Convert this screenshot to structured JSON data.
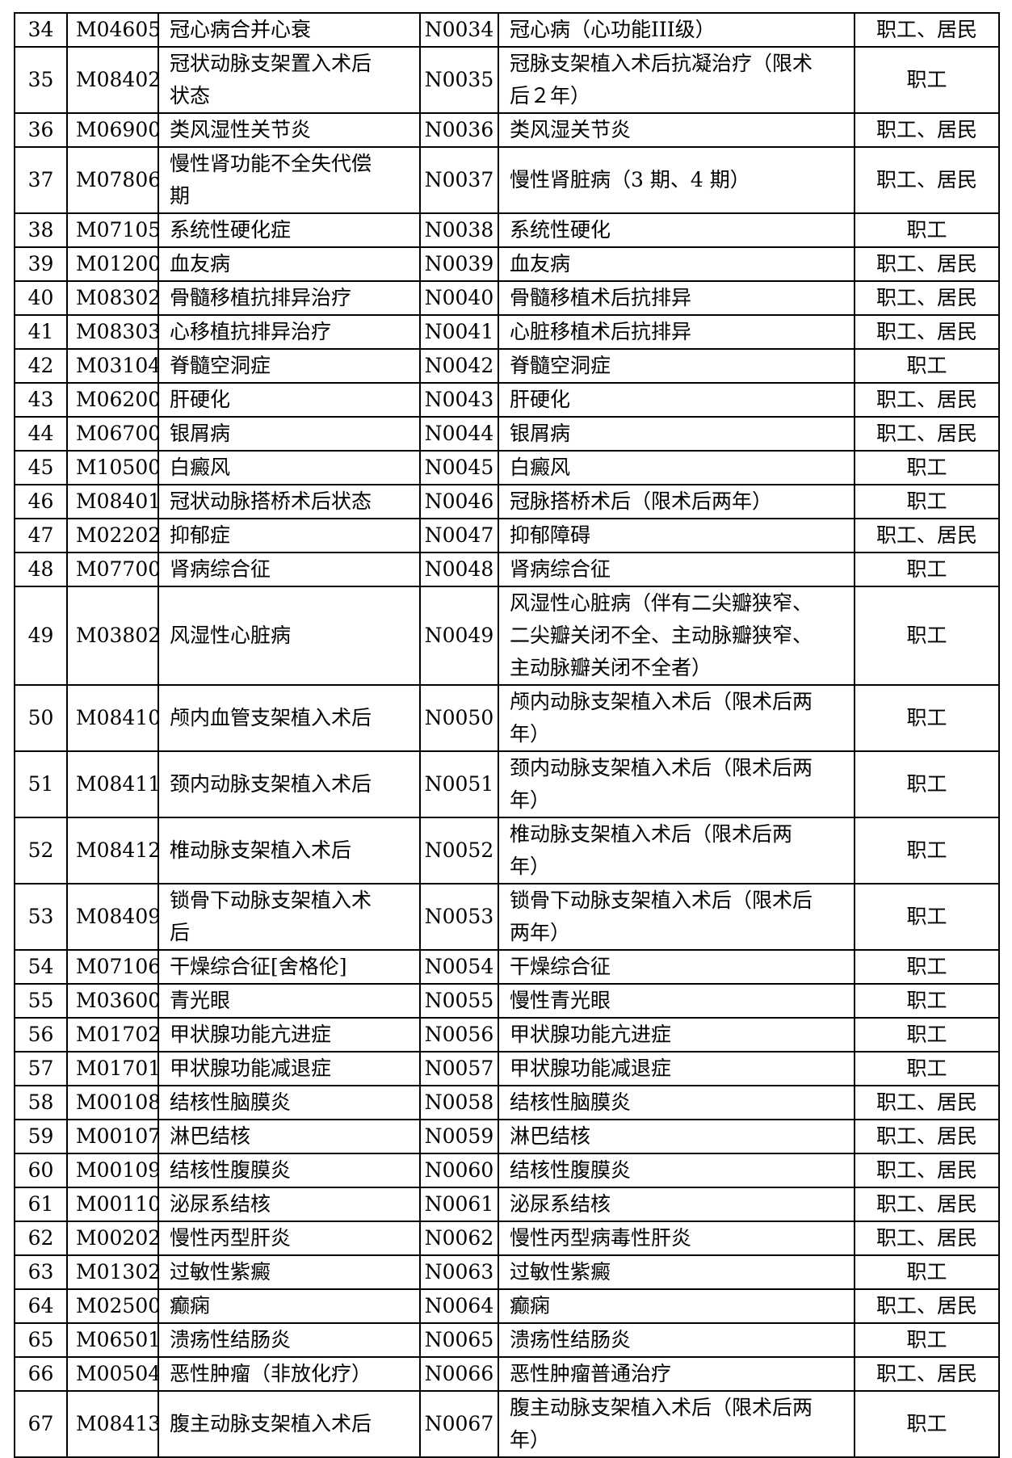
{
  "rows": [
    {
      "no": "34",
      "code1": "M04605",
      "name1": "冠心病合并心衰",
      "code2": "N0034",
      "name2": "冠心病（心功能III级）",
      "scope": "职工、居民"
    },
    {
      "no": "35",
      "code1": "M08402",
      "name1": "冠状动脉支架置入术后\n状态",
      "code2": "N0035",
      "name2": "冠脉支架植入术后抗凝治疗（限术\n后２年）",
      "scope": "职工"
    },
    {
      "no": "36",
      "code1": "M06900",
      "name1": "类风湿性关节炎",
      "code2": "N0036",
      "name2": "类风湿关节炎",
      "scope": "职工、居民"
    },
    {
      "no": "37",
      "code1": "M07806",
      "name1": "慢性肾功能不全失代偿\n期",
      "code2": "N0037",
      "name2": "慢性肾脏病（3 期、4 期）",
      "scope": "职工、居民"
    },
    {
      "no": "38",
      "code1": "M07105",
      "name1": "系统性硬化症",
      "code2": "N0038",
      "name2": "系统性硬化",
      "scope": "职工"
    },
    {
      "no": "39",
      "code1": "M01200",
      "name1": "血友病",
      "code2": "N0039",
      "name2": "血友病",
      "scope": "职工、居民"
    },
    {
      "no": "40",
      "code1": "M08302",
      "name1": "骨髓移植抗排异治疗",
      "code2": "N0040",
      "name2": "骨髓移植术后抗排异",
      "scope": "职工、居民"
    },
    {
      "no": "41",
      "code1": "M08303",
      "name1": "心移植抗排异治疗",
      "code2": "N0041",
      "name2": "心脏移植术后抗排异",
      "scope": "职工、居民"
    },
    {
      "no": "42",
      "code1": "M03104",
      "name1": "脊髓空洞症",
      "code2": "N0042",
      "name2": "脊髓空洞症",
      "scope": "职工"
    },
    {
      "no": "43",
      "code1": "M06200",
      "name1": "肝硬化",
      "code2": "N0043",
      "name2": "肝硬化",
      "scope": "职工、居民"
    },
    {
      "no": "44",
      "code1": "M06700",
      "name1": "银屑病",
      "code2": "N0044",
      "name2": "银屑病",
      "scope": "职工、居民"
    },
    {
      "no": "45",
      "code1": "M10500",
      "name1": "白癜风",
      "code2": "N0045",
      "name2": "白癜风",
      "scope": "职工"
    },
    {
      "no": "46",
      "code1": "M08401",
      "name1": "冠状动脉搭桥术后状态",
      "code2": "N0046",
      "name2": "冠脉搭桥术后（限术后两年）",
      "scope": "职工"
    },
    {
      "no": "47",
      "code1": "M02202",
      "name1": "抑郁症",
      "code2": "N0047",
      "name2": "抑郁障碍",
      "scope": "职工、居民"
    },
    {
      "no": "48",
      "code1": "M07700",
      "name1": "肾病综合征",
      "code2": "N0048",
      "name2": "肾病综合征",
      "scope": "职工"
    },
    {
      "no": "49",
      "code1": "M03802",
      "name1": "风湿性心脏病",
      "code2": "N0049",
      "name2": "风湿性心脏病（伴有二尖瓣狭窄、\n二尖瓣关闭不全、主动脉瓣狭窄、\n主动脉瓣关闭不全者）",
      "scope": "职工"
    },
    {
      "no": "50",
      "code1": "M08410",
      "name1": "颅内血管支架植入术后",
      "code2": "N0050",
      "name2": "颅内动脉支架植入术后（限术后两\n年）",
      "scope": "职工"
    },
    {
      "no": "51",
      "code1": "M08411",
      "name1": "颈内动脉支架植入术后",
      "code2": "N0051",
      "name2": "颈内动脉支架植入术后（限术后两\n年）",
      "scope": "职工"
    },
    {
      "no": "52",
      "code1": "M08412",
      "name1": "椎动脉支架植入术后",
      "code2": "N0052",
      "name2": "椎动脉支架植入术后（限术后两\n年）",
      "scope": "职工"
    },
    {
      "no": "53",
      "code1": "M08409",
      "name1": "锁骨下动脉支架植入术\n后",
      "code2": "N0053",
      "name2": "锁骨下动脉支架植入术后（限术后\n两年）",
      "scope": "职工"
    },
    {
      "no": "54",
      "code1": "M07106",
      "name1": "干燥综合征[舍格伦]",
      "code2": "N0054",
      "name2": "干燥综合征",
      "scope": "职工"
    },
    {
      "no": "55",
      "code1": "M03600",
      "name1": "青光眼",
      "code2": "N0055",
      "name2": "慢性青光眼",
      "scope": "职工"
    },
    {
      "no": "56",
      "code1": "M01702",
      "name1": "甲状腺功能亢进症",
      "code2": "N0056",
      "name2": "甲状腺功能亢进症",
      "scope": "职工"
    },
    {
      "no": "57",
      "code1": "M01701",
      "name1": "甲状腺功能减退症",
      "code2": "N0057",
      "name2": "甲状腺功能减退症",
      "scope": "职工"
    },
    {
      "no": "58",
      "code1": "M00108",
      "name1": "结核性脑膜炎",
      "code2": "N0058",
      "name2": "结核性脑膜炎",
      "scope": "职工、居民"
    },
    {
      "no": "59",
      "code1": "M00107",
      "name1": "淋巴结核",
      "code2": "N0059",
      "name2": "淋巴结核",
      "scope": "职工、居民"
    },
    {
      "no": "60",
      "code1": "M00109",
      "name1": "结核性腹膜炎",
      "code2": "N0060",
      "name2": "结核性腹膜炎",
      "scope": "职工、居民"
    },
    {
      "no": "61",
      "code1": "M00110",
      "name1": "泌尿系结核",
      "code2": "N0061",
      "name2": "泌尿系结核",
      "scope": "职工、居民"
    },
    {
      "no": "62",
      "code1": "M00202",
      "name1": "慢性丙型肝炎",
      "code2": "N0062",
      "name2": "慢性丙型病毒性肝炎",
      "scope": "职工、居民"
    },
    {
      "no": "63",
      "code1": "M01302",
      "name1": "过敏性紫癜",
      "code2": "N0063",
      "name2": "过敏性紫癜",
      "scope": "职工"
    },
    {
      "no": "64",
      "code1": "M02500",
      "name1": "癫痫",
      "code2": "N0064",
      "name2": "癫痫",
      "scope": "职工、居民"
    },
    {
      "no": "65",
      "code1": "M06501",
      "name1": "溃疡性结肠炎",
      "code2": "N0065",
      "name2": "溃疡性结肠炎",
      "scope": "职工"
    },
    {
      "no": "66",
      "code1": "M00504",
      "name1": "恶性肿瘤（非放化疗）",
      "code2": "N0066",
      "name2": "恶性肿瘤普通治疗",
      "scope": "职工、居民"
    },
    {
      "no": "67",
      "code1": "M08413",
      "name1": "腹主动脉支架植入术后",
      "code2": "N0067",
      "name2": "腹主动脉支架植入术后（限术后两\n年）",
      "scope": "职工"
    }
  ]
}
